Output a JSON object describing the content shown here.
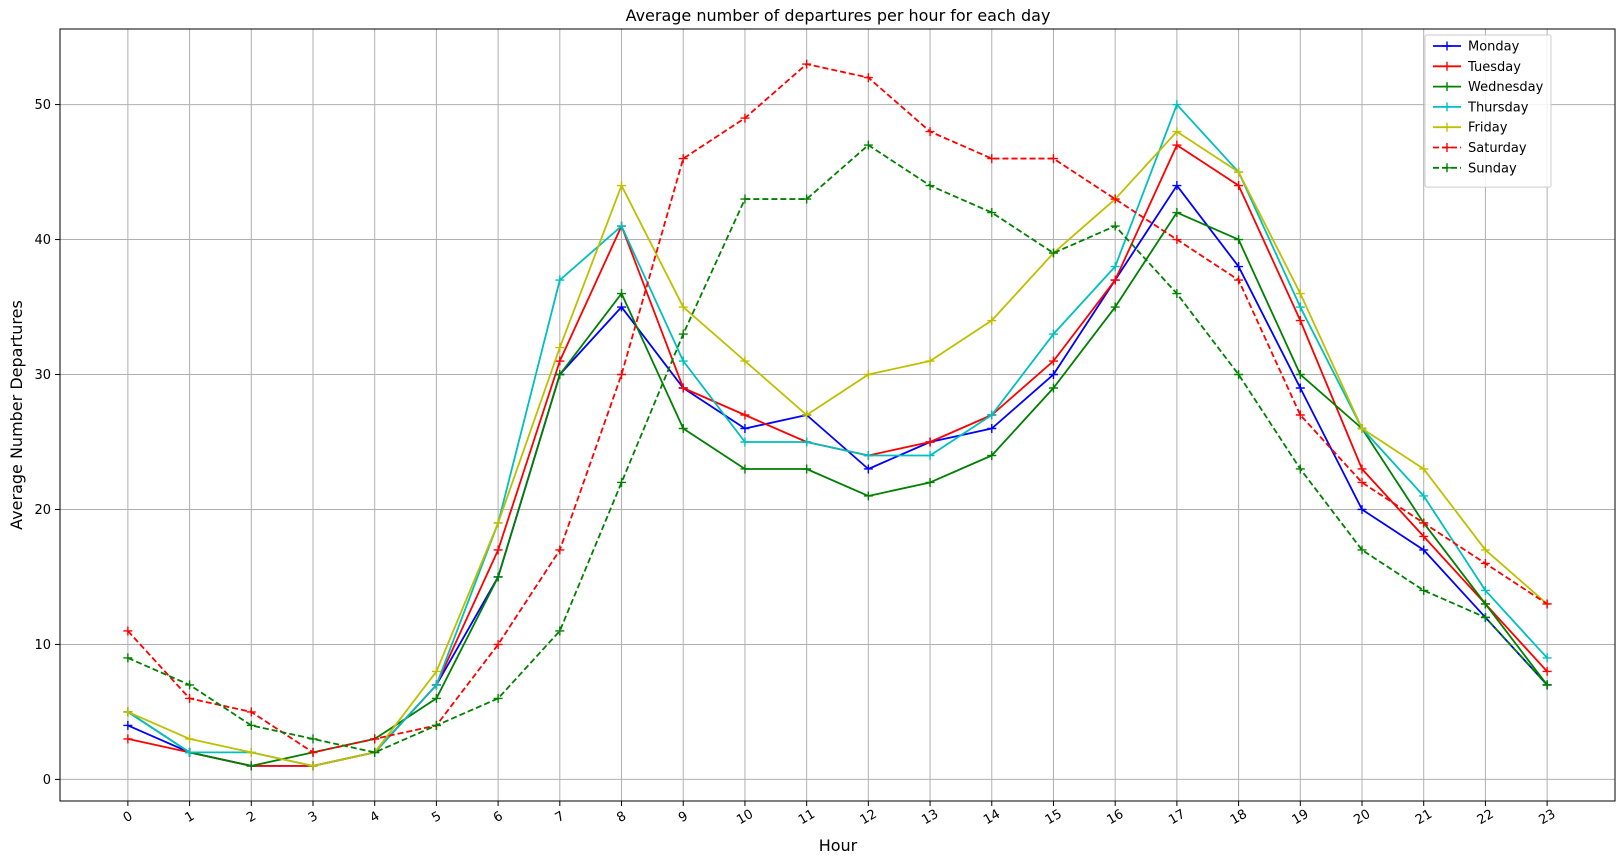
{
  "chart_data": {
    "type": "line",
    "title": "Average number of departures per hour for each day",
    "xlabel": "Hour",
    "ylabel": "Average Number Departures",
    "x": [
      0,
      1,
      2,
      3,
      4,
      5,
      6,
      7,
      8,
      9,
      10,
      11,
      12,
      13,
      14,
      15,
      16,
      17,
      18,
      19,
      20,
      21,
      22,
      23
    ],
    "x_tick_labels": [
      "0",
      "1",
      "2",
      "3",
      "4",
      "5",
      "6",
      "7",
      "8",
      "9",
      "10",
      "11",
      "12",
      "13",
      "14",
      "15",
      "16",
      "17",
      "18",
      "19",
      "20",
      "21",
      "22",
      "23"
    ],
    "y_ticks": [
      0,
      10,
      20,
      30,
      40,
      50
    ],
    "y_tick_labels": [
      "0",
      "10",
      "20",
      "30",
      "40",
      "50"
    ],
    "xlim": [
      -1.1,
      24.1
    ],
    "ylim": [
      -1.6,
      55.6
    ],
    "grid": true,
    "legend_position": "top-right",
    "marker": "+",
    "series": [
      {
        "name": "Monday",
        "color": "#0000ff",
        "style": "solid",
        "values": [
          4,
          2,
          1,
          1,
          2,
          7,
          15,
          30,
          35,
          29,
          26,
          27,
          23,
          25,
          26,
          30,
          37,
          44,
          38,
          29,
          20,
          17,
          12,
          7
        ]
      },
      {
        "name": "Tuesday",
        "color": "#ff0000",
        "style": "solid",
        "values": [
          3,
          2,
          1,
          1,
          2,
          7,
          17,
          31,
          41,
          29,
          27,
          25,
          24,
          25,
          27,
          31,
          37,
          47,
          44,
          34,
          23,
          18,
          13,
          8
        ]
      },
      {
        "name": "Wednesday",
        "color": "#008000",
        "style": "solid",
        "values": [
          5,
          2,
          1,
          2,
          3,
          6,
          15,
          30,
          36,
          26,
          23,
          23,
          21,
          22,
          24,
          29,
          35,
          42,
          40,
          30,
          26,
          19,
          13,
          7
        ]
      },
      {
        "name": "Thursday",
        "color": "#00bfbf",
        "style": "solid",
        "values": [
          5,
          2,
          2,
          1,
          2,
          7,
          19,
          37,
          41,
          31,
          25,
          25,
          24,
          24,
          27,
          33,
          38,
          50,
          45,
          35,
          26,
          21,
          14,
          9
        ]
      },
      {
        "name": "Friday",
        "color": "#bfbf00",
        "style": "solid",
        "values": [
          5,
          3,
          2,
          1,
          2,
          8,
          19,
          32,
          44,
          35,
          31,
          27,
          30,
          31,
          34,
          39,
          43,
          48,
          45,
          36,
          26,
          23,
          17,
          13
        ]
      },
      {
        "name": "Saturday",
        "color": "#ff0000",
        "style": "dashed",
        "values": [
          11,
          6,
          5,
          2,
          3,
          4,
          10,
          17,
          30,
          46,
          49,
          53,
          52,
          48,
          46,
          46,
          43,
          40,
          37,
          27,
          22,
          19,
          16,
          13
        ]
      },
      {
        "name": "Sunday",
        "color": "#008000",
        "style": "dashed",
        "values": [
          9,
          7,
          4,
          3,
          2,
          4,
          6,
          11,
          22,
          33,
          43,
          43,
          47,
          44,
          42,
          39,
          41,
          36,
          30,
          23,
          17,
          14,
          12,
          7
        ]
      }
    ]
  }
}
